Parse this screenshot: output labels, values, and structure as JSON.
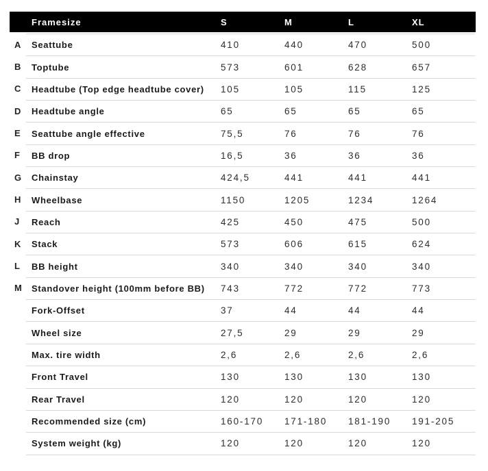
{
  "colors": {
    "header_bg": "#000000",
    "header_text": "#ffffff",
    "divider": "#d9d9d9",
    "label_text": "#1a1a1a",
    "value_text": "#2d2d2d",
    "background": "#ffffff"
  },
  "table": {
    "header": {
      "framesize_label": "Framesize",
      "columns": [
        "S",
        "M",
        "L",
        "XL"
      ]
    },
    "rows": [
      {
        "letter": "A",
        "label": "Seattube",
        "values": [
          "410",
          "440",
          "470",
          "500"
        ]
      },
      {
        "letter": "B",
        "label": "Toptube",
        "values": [
          "573",
          "601",
          "628",
          "657"
        ]
      },
      {
        "letter": "C",
        "label": "Headtube (Top edge headtube cover)",
        "values": [
          "105",
          "105",
          "115",
          "125"
        ]
      },
      {
        "letter": "D",
        "label": "Headtube angle",
        "values": [
          "65",
          "65",
          "65",
          "65"
        ]
      },
      {
        "letter": "E",
        "label": "Seattube angle effective",
        "values": [
          "75,5",
          "76",
          "76",
          "76"
        ]
      },
      {
        "letter": "F",
        "label": "BB drop",
        "values": [
          "16,5",
          "36",
          "36",
          "36"
        ]
      },
      {
        "letter": "G",
        "label": "Chainstay",
        "values": [
          "424,5",
          "441",
          "441",
          "441"
        ]
      },
      {
        "letter": "H",
        "label": "Wheelbase",
        "values": [
          "1150",
          "1205",
          "1234",
          "1264"
        ]
      },
      {
        "letter": "J",
        "label": "Reach",
        "values": [
          "425",
          "450",
          "475",
          "500"
        ]
      },
      {
        "letter": "K",
        "label": "Stack",
        "values": [
          "573",
          "606",
          "615",
          "624"
        ]
      },
      {
        "letter": "L",
        "label": "BB height",
        "values": [
          "340",
          "340",
          "340",
          "340"
        ]
      },
      {
        "letter": "M",
        "label": "Standover height (100mm before BB)",
        "values": [
          "743",
          "772",
          "772",
          "773"
        ]
      },
      {
        "letter": "",
        "label": "Fork-Offset",
        "values": [
          "37",
          "44",
          "44",
          "44"
        ]
      },
      {
        "letter": "",
        "label": "Wheel size",
        "values": [
          "27,5",
          "29",
          "29",
          "29"
        ]
      },
      {
        "letter": "",
        "label": "Max. tire width",
        "values": [
          "2,6",
          "2,6",
          "2,6",
          "2,6"
        ]
      },
      {
        "letter": "",
        "label": "Front Travel",
        "values": [
          "130",
          "130",
          "130",
          "130"
        ]
      },
      {
        "letter": "",
        "label": "Rear Travel",
        "values": [
          "120",
          "120",
          "120",
          "120"
        ]
      },
      {
        "letter": "",
        "label": "Recommended size (cm)",
        "values": [
          "160-170",
          "171-180",
          "181-190",
          "191-205"
        ]
      },
      {
        "letter": "",
        "label": "System weight (kg)",
        "values": [
          "120",
          "120",
          "120",
          "120"
        ]
      }
    ]
  }
}
